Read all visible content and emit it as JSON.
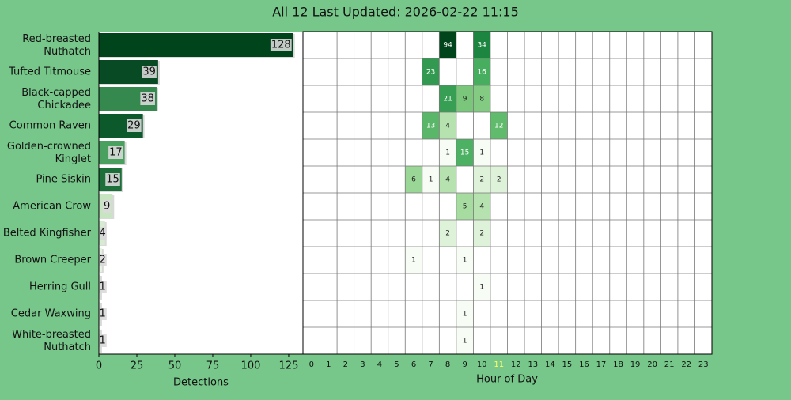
{
  "chart_data": [
    {
      "type": "bar",
      "orientation": "horizontal",
      "title": "All 12 Last Updated: 2026-02-22 11:15",
      "categories": [
        "Red-breasted Nuthatch",
        "Tufted Titmouse",
        "Black-capped Chickadee",
        "Common Raven",
        "Golden-crowned Kinglet",
        "Pine Siskin",
        "American Crow",
        "Belted Kingfisher",
        "Brown Creeper",
        "Herring Gull",
        "Cedar Waxwing",
        "White-breasted Nuthatch"
      ],
      "values": [
        128,
        39,
        38,
        29,
        17,
        15,
        9,
        4,
        2,
        1,
        1,
        1
      ],
      "colors": [
        "#00441b",
        "#084a24",
        "#35894f",
        "#0c5a2c",
        "#49a05f",
        "#1d6f3a",
        "#c8e5c2",
        "#d5ecd0",
        "#e8f5e4",
        "#e8f5e4",
        "#e8f5e4",
        "#e8f5e4"
      ],
      "xlabel": "Detections",
      "xlim": [
        0,
        134.4
      ],
      "xticks": [
        0,
        25,
        50,
        75,
        100,
        125
      ]
    },
    {
      "type": "heatmap",
      "xlabel": "Hour of Day",
      "cmap": "Greens",
      "highlight_category": 11,
      "highlight_color": "#ffff66",
      "categories": [
        0,
        1,
        2,
        3,
        4,
        5,
        6,
        7,
        8,
        9,
        10,
        11,
        12,
        13,
        14,
        15,
        16,
        17,
        18,
        19,
        20,
        21,
        22,
        23
      ],
      "values": [
        [
          null,
          null,
          null,
          null,
          null,
          null,
          null,
          null,
          94,
          null,
          34,
          null,
          null,
          null,
          null,
          null,
          null,
          null,
          null,
          null,
          null,
          null,
          null,
          null
        ],
        [
          null,
          null,
          null,
          null,
          null,
          null,
          null,
          23,
          null,
          null,
          16,
          null,
          null,
          null,
          null,
          null,
          null,
          null,
          null,
          null,
          null,
          null,
          null,
          null
        ],
        [
          null,
          null,
          null,
          null,
          null,
          null,
          null,
          null,
          21,
          9,
          8,
          null,
          null,
          null,
          null,
          null,
          null,
          null,
          null,
          null,
          null,
          null,
          null,
          null
        ],
        [
          null,
          null,
          null,
          null,
          null,
          null,
          null,
          13,
          4,
          null,
          null,
          12,
          null,
          null,
          null,
          null,
          null,
          null,
          null,
          null,
          null,
          null,
          null,
          null
        ],
        [
          null,
          null,
          null,
          null,
          null,
          null,
          null,
          null,
          1,
          15,
          1,
          null,
          null,
          null,
          null,
          null,
          null,
          null,
          null,
          null,
          null,
          null,
          null,
          null
        ],
        [
          null,
          null,
          null,
          null,
          null,
          null,
          6,
          1,
          4,
          null,
          2,
          2,
          null,
          null,
          null,
          null,
          null,
          null,
          null,
          null,
          null,
          null,
          null,
          null
        ],
        [
          null,
          null,
          null,
          null,
          null,
          null,
          null,
          null,
          null,
          5,
          4,
          null,
          null,
          null,
          null,
          null,
          null,
          null,
          null,
          null,
          null,
          null,
          null,
          null
        ],
        [
          null,
          null,
          null,
          null,
          null,
          null,
          null,
          null,
          2,
          null,
          2,
          null,
          null,
          null,
          null,
          null,
          null,
          null,
          null,
          null,
          null,
          null,
          null,
          null
        ],
        [
          null,
          null,
          null,
          null,
          null,
          null,
          1,
          null,
          null,
          1,
          null,
          null,
          null,
          null,
          null,
          null,
          null,
          null,
          null,
          null,
          null,
          null,
          null,
          null
        ],
        [
          null,
          null,
          null,
          null,
          null,
          null,
          null,
          null,
          null,
          null,
          1,
          null,
          null,
          null,
          null,
          null,
          null,
          null,
          null,
          null,
          null,
          null,
          null,
          null
        ],
        [
          null,
          null,
          null,
          null,
          null,
          null,
          null,
          null,
          null,
          1,
          null,
          null,
          null,
          null,
          null,
          null,
          null,
          null,
          null,
          null,
          null,
          null,
          null,
          null
        ],
        [
          null,
          null,
          null,
          null,
          null,
          null,
          null,
          null,
          null,
          1,
          null,
          null,
          null,
          null,
          null,
          null,
          null,
          null,
          null,
          null,
          null,
          null,
          null,
          null
        ]
      ]
    }
  ]
}
